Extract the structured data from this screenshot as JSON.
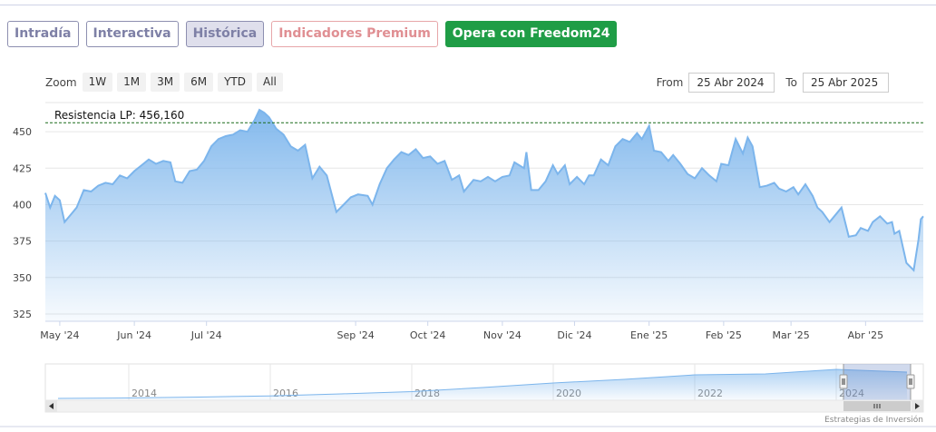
{
  "tabs": [
    {
      "label": "Intradía",
      "active": false
    },
    {
      "label": "Interactiva",
      "active": false
    },
    {
      "label": "Histórica",
      "active": true
    },
    {
      "label": "Indicadores Premium",
      "active": false
    },
    {
      "label": "Opera con Freedom24",
      "active": false
    }
  ],
  "zoom": {
    "label": "Zoom",
    "buttons": [
      "1W",
      "1M",
      "3M",
      "6M",
      "YTD",
      "All"
    ]
  },
  "range": {
    "from_label": "From",
    "from_value": "25 Abr 2024",
    "to_label": "To",
    "to_value": "25 Abr 2025"
  },
  "credit": "Estrategias de Inversión",
  "colors": {
    "line": "#7cb5ec",
    "tab_border": "#8d8fb0",
    "premium": "#e08f93",
    "freedom_bg": "#1f9d46",
    "annotation": "#1a6b1a"
  },
  "chart_data": {
    "type": "area",
    "title": "",
    "ylim": [
      320,
      470
    ],
    "yticks": [
      325,
      350,
      375,
      400,
      425,
      450
    ],
    "x_tick_labels": [
      "May '24",
      "Jun '24",
      "Jul '24",
      "Sep '24",
      "Oct '24",
      "Nov '24",
      "Dic '24",
      "Ene '25",
      "Feb '25",
      "Mar '25",
      "Abr '25"
    ],
    "x_tick_dates": [
      "2024-05-01",
      "2024-06-01",
      "2024-07-01",
      "2024-09-01",
      "2024-10-01",
      "2024-11-01",
      "2024-12-01",
      "2025-01-01",
      "2025-02-01",
      "2025-03-01",
      "2025-04-01"
    ],
    "x_range": [
      "2024-04-25",
      "2025-04-25"
    ],
    "grid": true,
    "annotation": {
      "label": "Resistencia LP: 456,160",
      "value": 456.16
    },
    "series": [
      {
        "points": [
          [
            "2024-04-25",
            408
          ],
          [
            "2024-04-27",
            398
          ],
          [
            "2024-04-29",
            406
          ],
          [
            "2024-05-01",
            403
          ],
          [
            "2024-05-03",
            388
          ],
          [
            "2024-05-06",
            394
          ],
          [
            "2024-05-08",
            398
          ],
          [
            "2024-05-11",
            410
          ],
          [
            "2024-05-14",
            409
          ],
          [
            "2024-05-17",
            413
          ],
          [
            "2024-05-20",
            415
          ],
          [
            "2024-05-23",
            414
          ],
          [
            "2024-05-26",
            420
          ],
          [
            "2024-05-29",
            418
          ],
          [
            "2024-06-01",
            423
          ],
          [
            "2024-06-04",
            427
          ],
          [
            "2024-06-07",
            431
          ],
          [
            "2024-06-10",
            428
          ],
          [
            "2024-06-13",
            430
          ],
          [
            "2024-06-16",
            429
          ],
          [
            "2024-06-18",
            416
          ],
          [
            "2024-06-21",
            415
          ],
          [
            "2024-06-24",
            423
          ],
          [
            "2024-06-27",
            424
          ],
          [
            "2024-06-30",
            430
          ],
          [
            "2024-07-03",
            440
          ],
          [
            "2024-07-06",
            445
          ],
          [
            "2024-07-09",
            447
          ],
          [
            "2024-07-12",
            448
          ],
          [
            "2024-07-15",
            451
          ],
          [
            "2024-07-18",
            450
          ],
          [
            "2024-07-21",
            458
          ],
          [
            "2024-07-23",
            465
          ],
          [
            "2024-07-25",
            463
          ],
          [
            "2024-07-27",
            460
          ],
          [
            "2024-07-30",
            452
          ],
          [
            "2024-08-02",
            448
          ],
          [
            "2024-08-05",
            440
          ],
          [
            "2024-08-08",
            437
          ],
          [
            "2024-08-11",
            441
          ],
          [
            "2024-08-14",
            418
          ],
          [
            "2024-08-17",
            426
          ],
          [
            "2024-08-20",
            420
          ],
          [
            "2024-08-24",
            395
          ],
          [
            "2024-08-27",
            400
          ],
          [
            "2024-08-30",
            405
          ],
          [
            "2024-09-02",
            407
          ],
          [
            "2024-09-06",
            406
          ],
          [
            "2024-09-08",
            400
          ],
          [
            "2024-09-11",
            414
          ],
          [
            "2024-09-14",
            425
          ],
          [
            "2024-09-17",
            431
          ],
          [
            "2024-09-20",
            436
          ],
          [
            "2024-09-23",
            434
          ],
          [
            "2024-09-26",
            438
          ],
          [
            "2024-09-29",
            432
          ],
          [
            "2024-10-02",
            433
          ],
          [
            "2024-10-05",
            428
          ],
          [
            "2024-10-08",
            430
          ],
          [
            "2024-10-11",
            417
          ],
          [
            "2024-10-14",
            420
          ],
          [
            "2024-10-16",
            409
          ],
          [
            "2024-10-20",
            417
          ],
          [
            "2024-10-23",
            416
          ],
          [
            "2024-10-26",
            419
          ],
          [
            "2024-10-29",
            416
          ],
          [
            "2024-11-01",
            419
          ],
          [
            "2024-11-04",
            420
          ],
          [
            "2024-11-06",
            429
          ],
          [
            "2024-11-08",
            427
          ],
          [
            "2024-11-10",
            425
          ],
          [
            "2024-11-11",
            436
          ],
          [
            "2024-11-13",
            410
          ],
          [
            "2024-11-16",
            410
          ],
          [
            "2024-11-19",
            416
          ],
          [
            "2024-11-22",
            427
          ],
          [
            "2024-11-24",
            421
          ],
          [
            "2024-11-27",
            427
          ],
          [
            "2024-11-29",
            414
          ],
          [
            "2024-12-02",
            419
          ],
          [
            "2024-12-05",
            414
          ],
          [
            "2024-12-07",
            420
          ],
          [
            "2024-12-09",
            420
          ],
          [
            "2024-12-12",
            431
          ],
          [
            "2024-12-15",
            427
          ],
          [
            "2024-12-18",
            440
          ],
          [
            "2024-12-21",
            445
          ],
          [
            "2024-12-24",
            443
          ],
          [
            "2024-12-27",
            449
          ],
          [
            "2024-12-29",
            445
          ],
          [
            "2025-01-01",
            454
          ],
          [
            "2025-01-03",
            437
          ],
          [
            "2025-01-06",
            436
          ],
          [
            "2025-01-09",
            430
          ],
          [
            "2025-01-11",
            434
          ],
          [
            "2025-01-14",
            428
          ],
          [
            "2025-01-17",
            421
          ],
          [
            "2025-01-20",
            418
          ],
          [
            "2025-01-23",
            425
          ],
          [
            "2025-01-26",
            420
          ],
          [
            "2025-01-29",
            416
          ],
          [
            "2025-01-31",
            428
          ],
          [
            "2025-02-03",
            427
          ],
          [
            "2025-02-06",
            445
          ],
          [
            "2025-02-09",
            435
          ],
          [
            "2025-02-11",
            446
          ],
          [
            "2025-02-13",
            440
          ],
          [
            "2025-02-16",
            412
          ],
          [
            "2025-02-19",
            413
          ],
          [
            "2025-02-22",
            415
          ],
          [
            "2025-02-24",
            411
          ],
          [
            "2025-02-27",
            409
          ],
          [
            "2025-03-02",
            412
          ],
          [
            "2025-03-04",
            407
          ],
          [
            "2025-03-07",
            414
          ],
          [
            "2025-03-10",
            406
          ],
          [
            "2025-03-12",
            398
          ],
          [
            "2025-03-14",
            395
          ],
          [
            "2025-03-17",
            388
          ],
          [
            "2025-03-19",
            392
          ],
          [
            "2025-03-22",
            398
          ],
          [
            "2025-03-25",
            378
          ],
          [
            "2025-03-28",
            379
          ],
          [
            "2025-03-30",
            384
          ],
          [
            "2025-04-02",
            382
          ],
          [
            "2025-04-04",
            388
          ],
          [
            "2025-04-07",
            392
          ],
          [
            "2025-04-10",
            387
          ],
          [
            "2025-04-12",
            388
          ],
          [
            "2025-04-13",
            380
          ],
          [
            "2025-04-15",
            382
          ],
          [
            "2025-04-18",
            360
          ],
          [
            "2025-04-21",
            355
          ],
          [
            "2025-04-23",
            376
          ],
          [
            "2025-04-24",
            390
          ],
          [
            "2025-04-25",
            392
          ]
        ]
      }
    ],
    "navigator": {
      "x_tick_labels": [
        "2014",
        "2016",
        "2018",
        "2020",
        "2022",
        "2024"
      ],
      "ylim": [
        100,
        480
      ],
      "points": [
        [
          "2013",
          120
        ],
        [
          "2014",
          125
        ],
        [
          "2015",
          135
        ],
        [
          "2016",
          148
        ],
        [
          "2017",
          170
        ],
        [
          "2018",
          195
        ],
        [
          "2019",
          240
        ],
        [
          "2020",
          290
        ],
        [
          "2021",
          330
        ],
        [
          "2022",
          380
        ],
        [
          "2023",
          390
        ],
        [
          "2024",
          440
        ],
        [
          "2025",
          410
        ]
      ]
    }
  }
}
